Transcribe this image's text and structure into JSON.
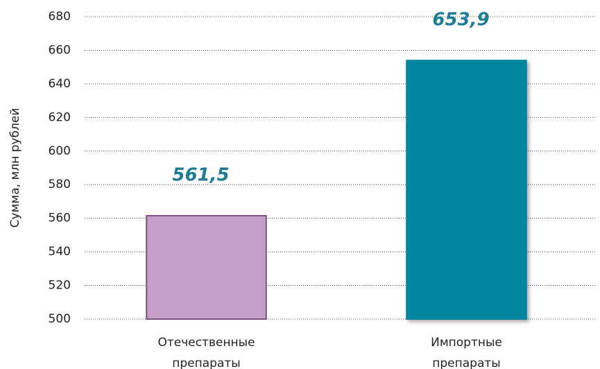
{
  "chart_data": {
    "type": "bar",
    "y_label": "Сумма, млн рублей",
    "categories": [
      "Отечественные препараты",
      "Импортные препараты"
    ],
    "values": [
      561.5,
      653.9
    ],
    "value_labels": [
      "561,5",
      "653,9"
    ],
    "colors": [
      "#c6a0cb",
      "#00869e"
    ],
    "edge_colors": [
      "#7b4f80",
      "#00869e"
    ],
    "ylim": [
      500,
      680
    ],
    "yticks": [
      500,
      520,
      540,
      560,
      580,
      600,
      620,
      640,
      660,
      680
    ],
    "grid": true
  }
}
